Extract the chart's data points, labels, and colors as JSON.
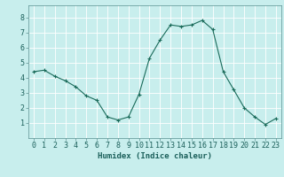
{
  "x": [
    0,
    1,
    2,
    3,
    4,
    5,
    6,
    7,
    8,
    9,
    10,
    11,
    12,
    13,
    14,
    15,
    16,
    17,
    18,
    19,
    20,
    21,
    22,
    23
  ],
  "y": [
    4.4,
    4.5,
    4.1,
    3.8,
    3.4,
    2.8,
    2.5,
    1.4,
    1.2,
    1.4,
    2.9,
    5.3,
    6.5,
    7.5,
    7.4,
    7.5,
    7.8,
    7.2,
    4.4,
    3.2,
    2.0,
    1.4,
    0.9,
    1.3
  ],
  "xlabel": "Humidex (Indice chaleur)",
  "line_color": "#1a6b5a",
  "marker": "+",
  "marker_size": 3.5,
  "marker_lw": 0.8,
  "bg_color": "#c8eeed",
  "grid_color": "#ffffff",
  "xlim": [
    -0.5,
    23.5
  ],
  "ylim": [
    0,
    8.8
  ],
  "yticks": [
    1,
    2,
    3,
    4,
    5,
    6,
    7,
    8
  ],
  "xtick_labels": [
    "0",
    "1",
    "2",
    "3",
    "4",
    "5",
    "6",
    "7",
    "8",
    "9",
    "10",
    "11",
    "12",
    "13",
    "14",
    "15",
    "16",
    "17",
    "18",
    "19",
    "20",
    "21",
    "22",
    "23"
  ],
  "xlabel_fontsize": 6.5,
  "tick_fontsize": 6.0,
  "linewidth": 0.8
}
